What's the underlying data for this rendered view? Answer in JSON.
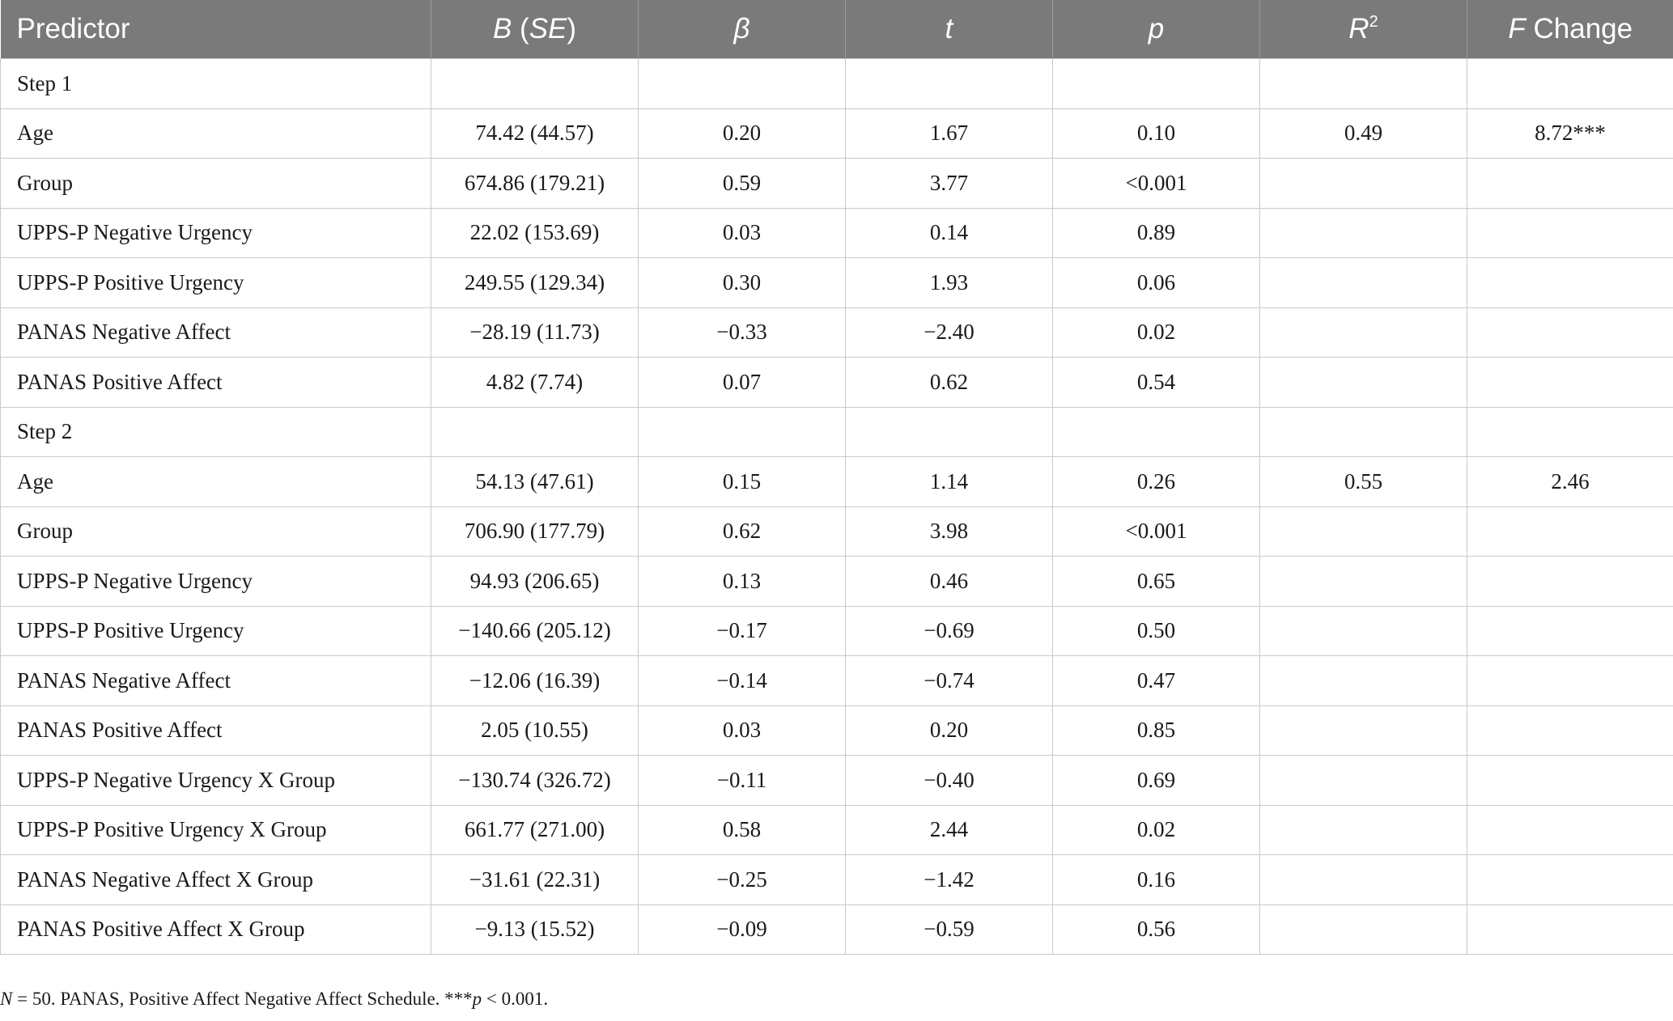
{
  "table": {
    "headers": {
      "predictor": "Predictor",
      "b_main": "B",
      "b_open": " (",
      "b_se": "SE",
      "b_close": ")",
      "beta": "β",
      "t": "t",
      "p": "p",
      "r2_base": "R",
      "r2_sup": "2",
      "fchange_f": "F",
      "fchange_rest": " Change"
    },
    "rows": [
      {
        "predictor": "Step 1",
        "b": "",
        "beta": "",
        "t": "",
        "p": "",
        "r2": "",
        "f": ""
      },
      {
        "predictor": "Age",
        "b": "74.42 (44.57)",
        "beta": "0.20",
        "t": "1.67",
        "p": "0.10",
        "r2": "0.49",
        "f": "8.72***"
      },
      {
        "predictor": "Group",
        "b": "674.86 (179.21)",
        "beta": "0.59",
        "t": "3.77",
        "p": "<0.001",
        "r2": "",
        "f": ""
      },
      {
        "predictor": "UPPS-P Negative Urgency",
        "b": "22.02 (153.69)",
        "beta": "0.03",
        "t": "0.14",
        "p": "0.89",
        "r2": "",
        "f": ""
      },
      {
        "predictor": "UPPS-P Positive Urgency",
        "b": "249.55 (129.34)",
        "beta": "0.30",
        "t": "1.93",
        "p": "0.06",
        "r2": "",
        "f": ""
      },
      {
        "predictor": "PANAS Negative Affect",
        "b": "−28.19 (11.73)",
        "beta": "−0.33",
        "t": "−2.40",
        "p": "0.02",
        "r2": "",
        "f": ""
      },
      {
        "predictor": "PANAS Positive Affect",
        "b": "4.82 (7.74)",
        "beta": "0.07",
        "t": "0.62",
        "p": "0.54",
        "r2": "",
        "f": ""
      },
      {
        "predictor": "Step 2",
        "b": "",
        "beta": "",
        "t": "",
        "p": "",
        "r2": "",
        "f": ""
      },
      {
        "predictor": "Age",
        "b": "54.13 (47.61)",
        "beta": "0.15",
        "t": "1.14",
        "p": "0.26",
        "r2": "0.55",
        "f": "2.46"
      },
      {
        "predictor": "Group",
        "b": "706.90 (177.79)",
        "beta": "0.62",
        "t": "3.98",
        "p": "<0.001",
        "r2": "",
        "f": ""
      },
      {
        "predictor": "UPPS-P Negative Urgency",
        "b": "94.93 (206.65)",
        "beta": "0.13",
        "t": "0.46",
        "p": "0.65",
        "r2": "",
        "f": ""
      },
      {
        "predictor": "UPPS-P Positive Urgency",
        "b": "−140.66 (205.12)",
        "beta": "−0.17",
        "t": "−0.69",
        "p": "0.50",
        "r2": "",
        "f": ""
      },
      {
        "predictor": "PANAS Negative Affect",
        "b": "−12.06 (16.39)",
        "beta": "−0.14",
        "t": "−0.74",
        "p": "0.47",
        "r2": "",
        "f": ""
      },
      {
        "predictor": "PANAS Positive Affect",
        "b": "2.05 (10.55)",
        "beta": "0.03",
        "t": "0.20",
        "p": "0.85",
        "r2": "",
        "f": ""
      },
      {
        "predictor": "UPPS-P Negative Urgency X Group",
        "b": "−130.74 (326.72)",
        "beta": "−0.11",
        "t": "−0.40",
        "p": "0.69",
        "r2": "",
        "f": ""
      },
      {
        "predictor": "UPPS-P Positive Urgency X Group",
        "b": "661.77 (271.00)",
        "beta": "0.58",
        "t": "2.44",
        "p": "0.02",
        "r2": "",
        "f": ""
      },
      {
        "predictor": "PANAS Negative Affect X Group",
        "b": "−31.61 (22.31)",
        "beta": "−0.25",
        "t": "−1.42",
        "p": "0.16",
        "r2": "",
        "f": ""
      },
      {
        "predictor": "PANAS Positive Affect X Group",
        "b": "−9.13 (15.52)",
        "beta": "−0.09",
        "t": "−0.59",
        "p": "0.56",
        "r2": "",
        "f": ""
      }
    ]
  },
  "footnote": {
    "n_symbol": "N",
    "n_rest": " = 50. PANAS, Positive Affect Negative Affect Schedule. ***",
    "p_symbol": "p",
    "p_rest": " < 0.001."
  },
  "colors": {
    "header_bg": "#7a7a7a",
    "header_text": "#ffffff",
    "grid_line": "#c9c9c9"
  }
}
